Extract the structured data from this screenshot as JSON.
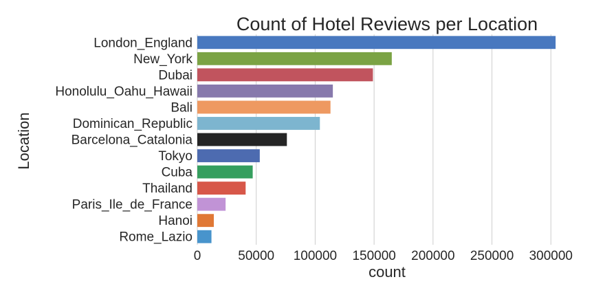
{
  "chart_data": {
    "type": "bar",
    "orientation": "horizontal",
    "title": "Count of Hotel Reviews per Location",
    "xlabel": "count",
    "ylabel": "Location",
    "xlim": [
      0,
      322000
    ],
    "xticks": [
      0,
      50000,
      100000,
      150000,
      200000,
      250000,
      300000
    ],
    "grid": "vertical",
    "categories": [
      "London_England",
      "New_York",
      "Dubai",
      "Honolulu_Oahu_Hawaii",
      "Bali",
      "Dominican_Republic",
      "Barcelona_Catalonia",
      "Tokyo",
      "Cuba",
      "Thailand",
      "Paris_Ile_de_France",
      "Hanoi",
      "Rome_Lazio"
    ],
    "values": [
      304000,
      165000,
      149000,
      115000,
      113000,
      104000,
      76000,
      53000,
      47000,
      41000,
      24000,
      14000,
      12000
    ],
    "colors": [
      "#4878bf",
      "#7ba344",
      "#c1545e",
      "#8779ac",
      "#ee9961",
      "#7db5cf",
      "#252525",
      "#4d6bb0",
      "#359e5e",
      "#d75749",
      "#c193d6",
      "#e07835",
      "#4894cc"
    ]
  }
}
